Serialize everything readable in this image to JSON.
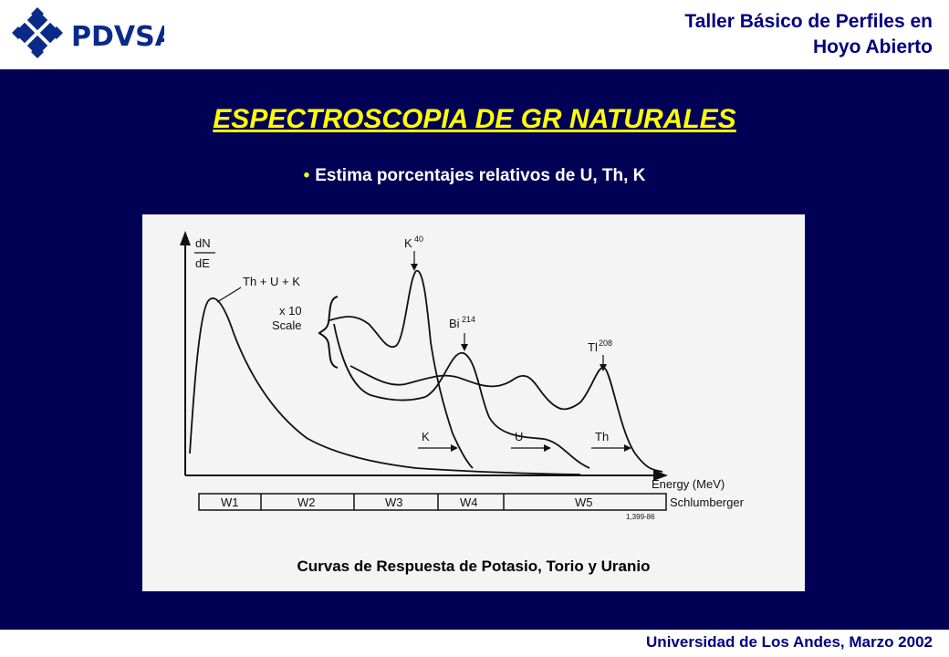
{
  "header": {
    "logo_text": "PDVSA",
    "title_line1": "Taller Básico de Perfiles en",
    "title_line2": "Hoyo Abierto"
  },
  "slide": {
    "title": "ESPECTROSCOPIA DE GR NATURALES",
    "bullet": "Estima porcentajes relativos de U, Th, K",
    "caption": "Curvas de Respuesta de Potasio, Torio y Uranio"
  },
  "figure": {
    "y_label_top": "dN",
    "y_label_bottom": "dE",
    "curve_label": "Th + U + K",
    "scale_label_1": "x 10",
    "scale_label_2": "Scale",
    "peak_k": "K",
    "peak_k_sup": "40",
    "peak_bi": "Bi",
    "peak_bi_sup": "214",
    "peak_tl": "Tl",
    "peak_tl_sup": "208",
    "arrow_k": "K",
    "arrow_u": "U",
    "arrow_th": "Th",
    "x_label": "Energy (MeV)",
    "windows": [
      "W1",
      "W2",
      "W3",
      "W4",
      "W5"
    ],
    "company": "Schlumberger",
    "ref": "1,399-86"
  },
  "footer": {
    "text": "Universidad de Los Andes, Marzo 2002"
  },
  "colors": {
    "background_main": "#000055",
    "title": "#ffff00",
    "header_text": "#000080"
  }
}
